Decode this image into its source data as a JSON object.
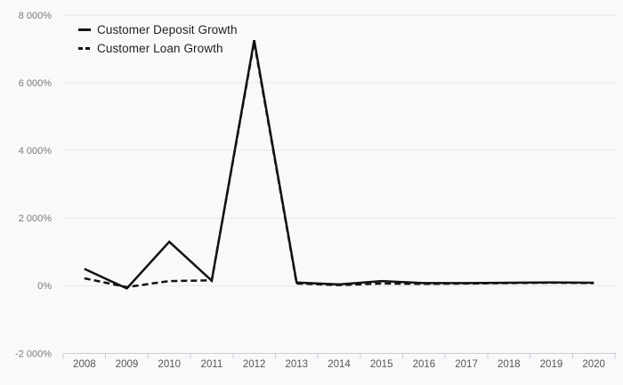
{
  "chart": {
    "colors": {
      "background": "#f9f9f9",
      "gridline": "#e8e8e8",
      "axis": "#c9cfda",
      "y_tick_label": "#7a7a7a",
      "x_tick_label": "#55565c",
      "series": "#131313",
      "legend_text": "#1f1f1f"
    }
  },
  "chart_data": {
    "type": "line",
    "title": "",
    "xlabel": "",
    "ylabel": "",
    "grid": "horizontal",
    "legend_position": "top-left",
    "x": [
      "2008",
      "2009",
      "2010",
      "2011",
      "2012",
      "2013",
      "2014",
      "2015",
      "2016",
      "2017",
      "2018",
      "2019",
      "2020"
    ],
    "series": [
      {
        "name": "Customer Deposit Growth",
        "line_style": "solid",
        "values": [
          500,
          -80,
          1300,
          150,
          7260,
          95,
          40,
          140,
          80,
          80,
          90,
          100,
          90
        ]
      },
      {
        "name": "Customer Loan Growth",
        "line_style": "dashed",
        "values": [
          220,
          -40,
          140,
          160,
          7210,
          65,
          20,
          65,
          55,
          65,
          80,
          90,
          80
        ]
      }
    ],
    "ylim": [
      -2000,
      8000
    ],
    "y_ticks": [
      {
        "value": 8000,
        "label": "8 000%"
      },
      {
        "value": 6000,
        "label": "6 000%"
      },
      {
        "value": 4000,
        "label": "4 000%"
      },
      {
        "value": 2000,
        "label": "2 000%"
      },
      {
        "value": 0,
        "label": "0%"
      },
      {
        "value": -2000,
        "label": "-2 000%"
      }
    ]
  }
}
